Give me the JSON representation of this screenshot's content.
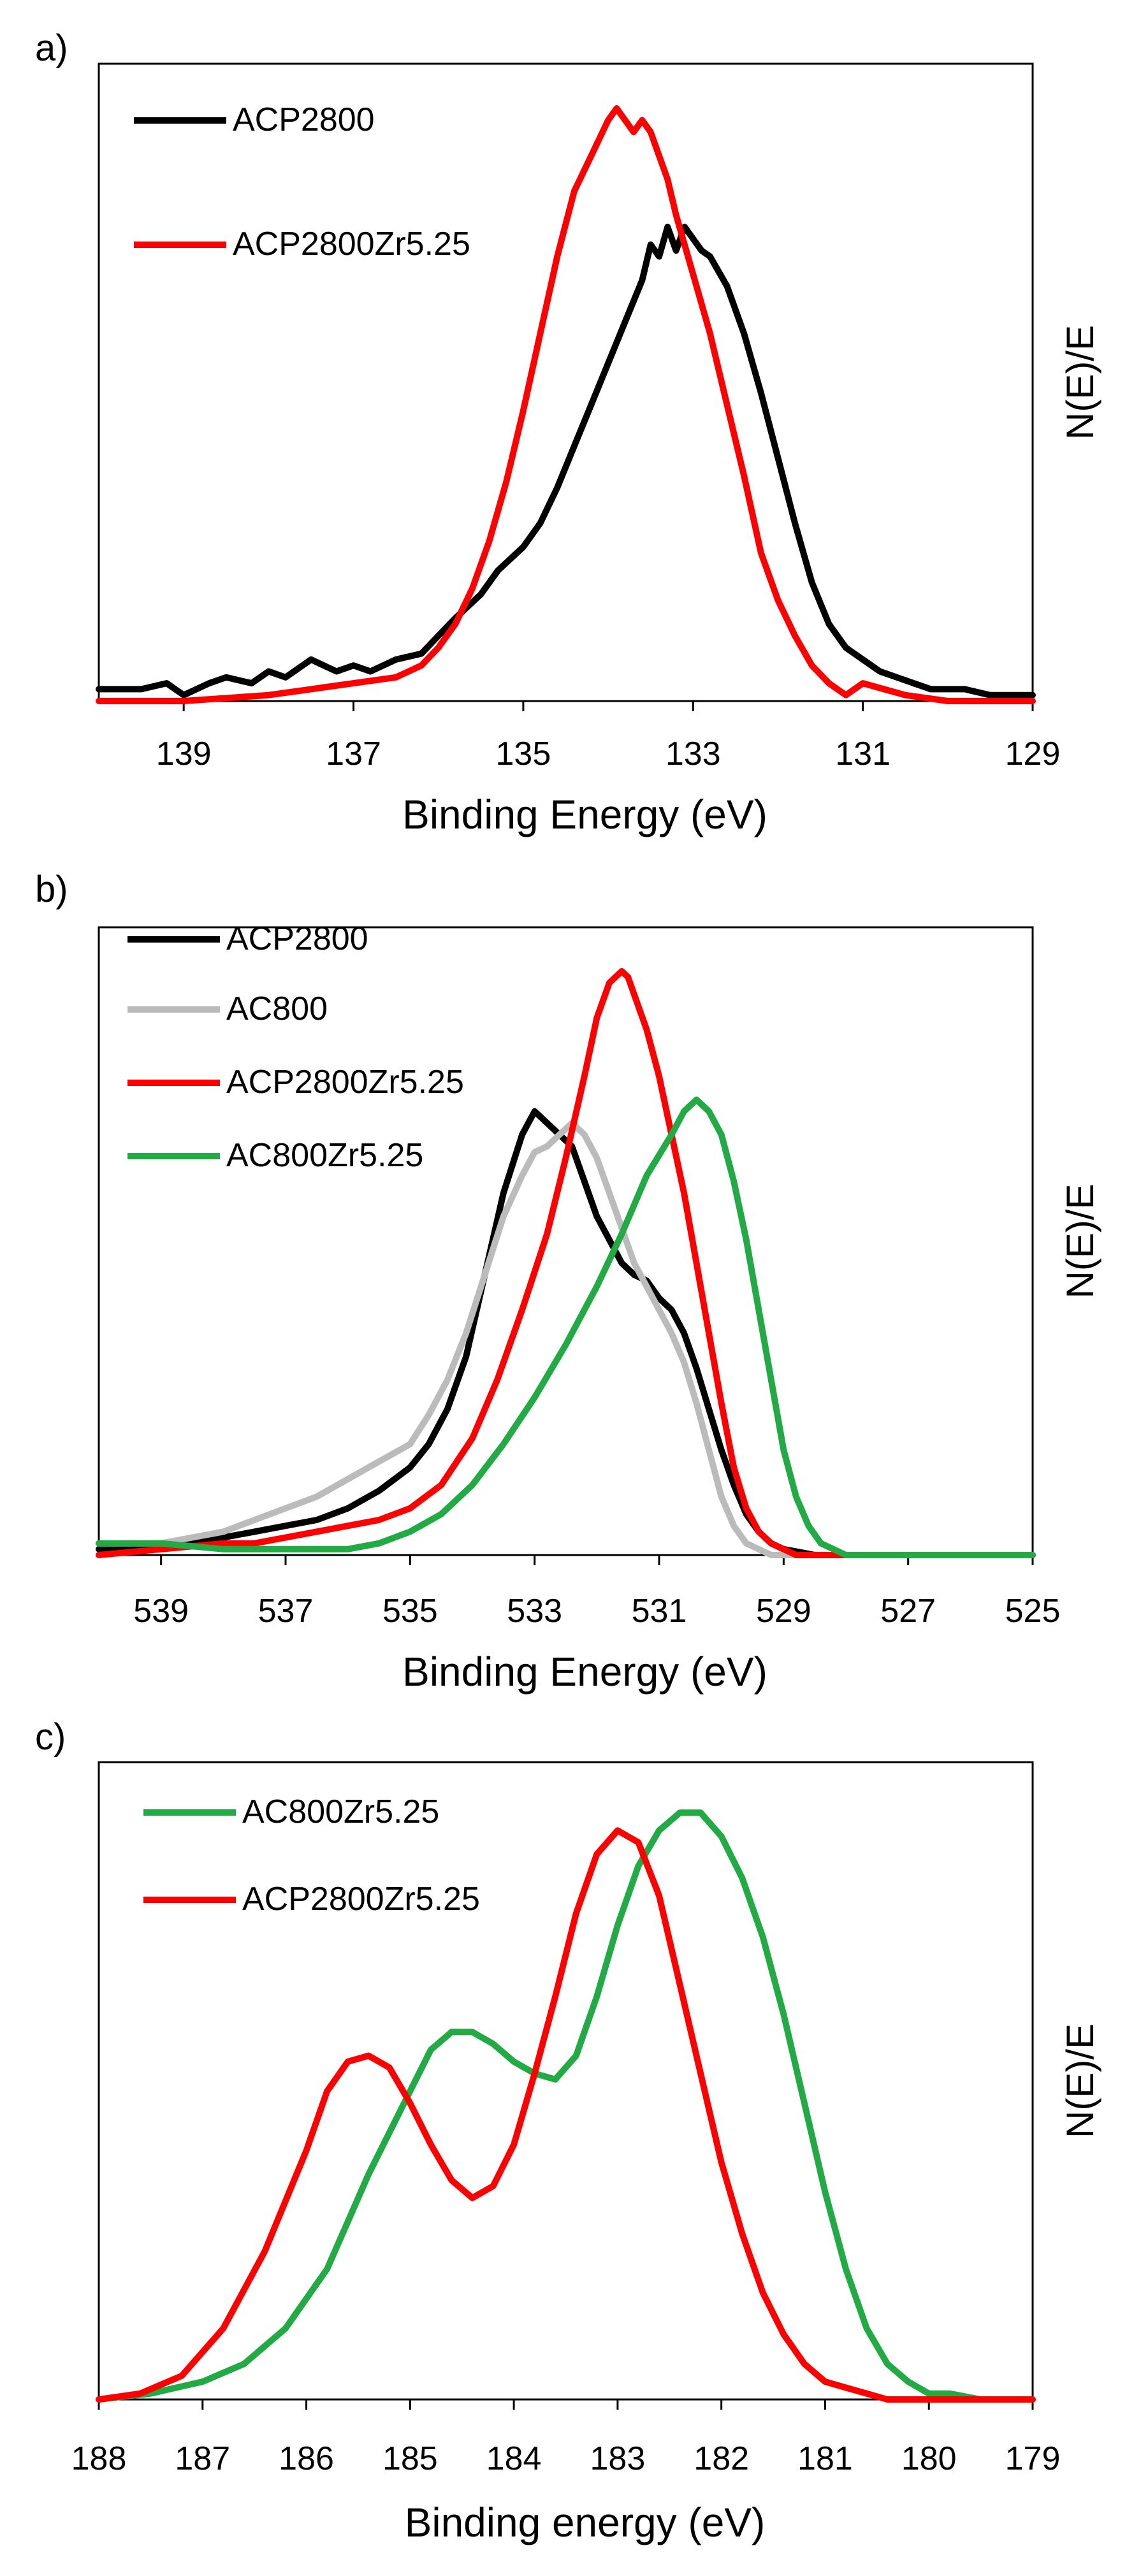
{
  "chart_data": [
    {
      "panel_label": "a)",
      "type": "line",
      "xlabel": "Binding Energy (eV)",
      "ylabel": "N(E)/E",
      "xlim": [
        140,
        129
      ],
      "ylim": [
        0,
        1.0
      ],
      "xticks": [
        139,
        137,
        135,
        133,
        131,
        129
      ],
      "legend_position": "top-left",
      "series": [
        {
          "name": "ACP2800",
          "color": "#000000",
          "x": [
            140.0,
            139.5,
            139.2,
            139.0,
            138.7,
            138.5,
            138.2,
            138.0,
            137.8,
            137.5,
            137.2,
            137.0,
            136.8,
            136.5,
            136.2,
            136.0,
            135.8,
            135.5,
            135.3,
            135.0,
            134.8,
            134.6,
            134.4,
            134.2,
            134.0,
            133.8,
            133.6,
            133.5,
            133.4,
            133.3,
            133.2,
            133.1,
            133.0,
            132.9,
            132.8,
            132.6,
            132.4,
            132.2,
            132.0,
            131.8,
            131.6,
            131.4,
            131.2,
            131.0,
            130.8,
            130.6,
            130.4,
            130.2,
            130.0,
            129.8,
            129.5,
            129.2,
            129.0
          ],
          "y": [
            0.02,
            0.02,
            0.03,
            0.01,
            0.03,
            0.04,
            0.03,
            0.05,
            0.04,
            0.07,
            0.05,
            0.06,
            0.05,
            0.07,
            0.08,
            0.11,
            0.14,
            0.18,
            0.22,
            0.26,
            0.3,
            0.36,
            0.43,
            0.5,
            0.57,
            0.64,
            0.71,
            0.77,
            0.75,
            0.8,
            0.76,
            0.8,
            0.78,
            0.76,
            0.75,
            0.7,
            0.62,
            0.52,
            0.41,
            0.3,
            0.2,
            0.13,
            0.09,
            0.07,
            0.05,
            0.04,
            0.03,
            0.02,
            0.02,
            0.02,
            0.01,
            0.01,
            0.01
          ]
        },
        {
          "name": "ACP2800Zr5.25",
          "color": "#ff0000",
          "x": [
            140.0,
            139.0,
            138.0,
            137.5,
            137.0,
            136.5,
            136.2,
            136.0,
            135.8,
            135.6,
            135.4,
            135.2,
            135.0,
            134.8,
            134.6,
            134.4,
            134.2,
            134.0,
            133.9,
            133.8,
            133.7,
            133.6,
            133.5,
            133.4,
            133.3,
            133.2,
            133.0,
            132.8,
            132.6,
            132.4,
            132.2,
            132.0,
            131.8,
            131.6,
            131.4,
            131.2,
            131.0,
            130.5,
            130.0,
            129.0
          ],
          "y": [
            0.0,
            0.0,
            0.01,
            0.02,
            0.03,
            0.04,
            0.06,
            0.09,
            0.13,
            0.19,
            0.27,
            0.37,
            0.49,
            0.62,
            0.75,
            0.86,
            0.92,
            0.98,
            1.0,
            0.98,
            0.96,
            0.98,
            0.96,
            0.92,
            0.88,
            0.82,
            0.72,
            0.62,
            0.5,
            0.38,
            0.25,
            0.17,
            0.11,
            0.06,
            0.03,
            0.01,
            0.03,
            0.01,
            0.0,
            0.0
          ]
        }
      ]
    },
    {
      "panel_label": "b)",
      "type": "line",
      "xlabel": "Binding Energy (eV)",
      "ylabel": "N(E)/E",
      "xlim": [
        540,
        525
      ],
      "ylim": [
        0,
        1.0
      ],
      "xticks": [
        539,
        537,
        535,
        533,
        531,
        529,
        527,
        525
      ],
      "legend_position": "top-left",
      "series": [
        {
          "name": "ACP2800",
          "color": "#000000",
          "x": [
            540.0,
            539.5,
            539.0,
            538.5,
            538.0,
            537.5,
            537.0,
            536.5,
            536.0,
            535.5,
            535.0,
            534.7,
            534.4,
            534.1,
            533.8,
            533.5,
            533.2,
            533.0,
            532.8,
            532.6,
            532.4,
            532.2,
            532.0,
            531.8,
            531.6,
            531.4,
            531.2,
            531.0,
            530.8,
            530.6,
            530.4,
            530.2,
            530.0,
            529.8,
            529.6,
            529.4,
            529.2,
            529.0,
            528.5,
            528.0,
            527.5,
            527.0,
            526.0,
            525.0
          ],
          "y": [
            0.01,
            0.01,
            0.02,
            0.02,
            0.03,
            0.04,
            0.05,
            0.06,
            0.08,
            0.11,
            0.15,
            0.19,
            0.25,
            0.34,
            0.48,
            0.62,
            0.72,
            0.76,
            0.74,
            0.72,
            0.7,
            0.64,
            0.58,
            0.54,
            0.5,
            0.48,
            0.47,
            0.44,
            0.42,
            0.38,
            0.32,
            0.25,
            0.18,
            0.12,
            0.07,
            0.04,
            0.02,
            0.01,
            0.0,
            0.0,
            0.0,
            0.0,
            0.0,
            0.0
          ]
        },
        {
          "name": "AC800",
          "color": "#bbbbbb",
          "x": [
            540.0,
            539.0,
            538.5,
            538.0,
            537.5,
            537.0,
            536.5,
            536.0,
            535.5,
            535.0,
            534.7,
            534.4,
            534.1,
            533.8,
            533.5,
            533.2,
            533.0,
            532.8,
            532.6,
            532.4,
            532.2,
            532.0,
            531.8,
            531.6,
            531.4,
            531.2,
            531.0,
            530.8,
            530.6,
            530.4,
            530.2,
            530.0,
            529.8,
            529.6,
            529.4,
            529.2,
            529.0,
            528.5,
            528.0,
            527.0,
            525.0
          ],
          "y": [
            0.02,
            0.02,
            0.03,
            0.04,
            0.06,
            0.08,
            0.1,
            0.13,
            0.16,
            0.19,
            0.24,
            0.3,
            0.38,
            0.48,
            0.58,
            0.65,
            0.69,
            0.7,
            0.72,
            0.74,
            0.72,
            0.68,
            0.62,
            0.56,
            0.5,
            0.46,
            0.42,
            0.38,
            0.33,
            0.26,
            0.18,
            0.1,
            0.05,
            0.02,
            0.01,
            0.0,
            0.0,
            0.0,
            0.0,
            0.0,
            0.0
          ]
        },
        {
          "name": "ACP2800Zr5.25",
          "color": "#ff0000",
          "x": [
            540.0,
            539.0,
            538.0,
            537.5,
            537.0,
            536.5,
            536.0,
            535.5,
            535.0,
            534.5,
            534.0,
            533.6,
            533.2,
            532.8,
            532.5,
            532.2,
            532.0,
            531.8,
            531.6,
            531.5,
            531.4,
            531.2,
            531.0,
            530.8,
            530.6,
            530.4,
            530.2,
            530.0,
            529.8,
            529.6,
            529.4,
            529.2,
            529.0,
            528.8,
            528.5,
            528.0,
            527.0,
            525.0
          ],
          "y": [
            0.0,
            0.01,
            0.02,
            0.02,
            0.03,
            0.04,
            0.05,
            0.06,
            0.08,
            0.12,
            0.2,
            0.3,
            0.42,
            0.55,
            0.68,
            0.82,
            0.92,
            0.98,
            1.0,
            0.99,
            0.96,
            0.9,
            0.82,
            0.72,
            0.62,
            0.5,
            0.38,
            0.26,
            0.15,
            0.08,
            0.04,
            0.02,
            0.01,
            0.0,
            0.0,
            0.0,
            0.0,
            0.0
          ]
        },
        {
          "name": "AC800Zr5.25",
          "color": "#22aa44",
          "x": [
            540.0,
            539.0,
            538.0,
            537.0,
            536.0,
            535.5,
            535.0,
            534.5,
            534.0,
            533.5,
            533.0,
            532.5,
            532.0,
            531.6,
            531.2,
            530.8,
            530.6,
            530.4,
            530.2,
            530.0,
            529.8,
            529.6,
            529.4,
            529.2,
            529.0,
            528.8,
            528.6,
            528.4,
            528.2,
            528.0,
            527.5,
            527.0,
            526.0,
            525.0
          ],
          "y": [
            0.02,
            0.02,
            0.01,
            0.01,
            0.01,
            0.02,
            0.04,
            0.07,
            0.12,
            0.19,
            0.27,
            0.36,
            0.46,
            0.55,
            0.65,
            0.72,
            0.76,
            0.78,
            0.76,
            0.72,
            0.64,
            0.54,
            0.42,
            0.3,
            0.18,
            0.1,
            0.05,
            0.02,
            0.01,
            0.0,
            0.0,
            0.0,
            0.0,
            0.0
          ]
        }
      ]
    },
    {
      "panel_label": "c)",
      "type": "line",
      "xlabel": "Binding energy (eV)",
      "ylabel": "N(E)/E",
      "xlim": [
        188,
        179
      ],
      "ylim": [
        0,
        1.0
      ],
      "xticks": [
        188,
        187,
        186,
        185,
        184,
        183,
        182,
        181,
        180,
        179
      ],
      "legend_position": "top-left",
      "series": [
        {
          "name": "AC800Zr5.25",
          "color": "#22aa44",
          "x": [
            188.0,
            187.5,
            187.0,
            186.6,
            186.2,
            185.8,
            185.4,
            185.0,
            184.8,
            184.6,
            184.4,
            184.2,
            184.0,
            183.8,
            183.6,
            183.4,
            183.2,
            183.0,
            182.8,
            182.6,
            182.4,
            182.2,
            182.0,
            181.8,
            181.6,
            181.4,
            181.2,
            181.0,
            180.8,
            180.6,
            180.4,
            180.2,
            180.0,
            179.8,
            179.5,
            179.0
          ],
          "y": [
            0.0,
            0.01,
            0.03,
            0.06,
            0.12,
            0.22,
            0.38,
            0.52,
            0.59,
            0.62,
            0.62,
            0.6,
            0.57,
            0.55,
            0.54,
            0.58,
            0.68,
            0.8,
            0.9,
            0.96,
            0.99,
            0.99,
            0.95,
            0.88,
            0.78,
            0.65,
            0.5,
            0.35,
            0.22,
            0.12,
            0.06,
            0.03,
            0.01,
            0.01,
            0.0,
            0.0
          ]
        },
        {
          "name": "ACP2800Zr5.25",
          "color": "#ff0000",
          "x": [
            188.0,
            187.6,
            187.2,
            186.8,
            186.4,
            186.0,
            185.8,
            185.6,
            185.4,
            185.2,
            185.0,
            184.8,
            184.6,
            184.4,
            184.2,
            184.0,
            183.8,
            183.6,
            183.4,
            183.2,
            183.0,
            182.8,
            182.6,
            182.4,
            182.2,
            182.0,
            181.8,
            181.6,
            181.4,
            181.2,
            181.0,
            180.8,
            180.6,
            180.4,
            180.0,
            179.5,
            179.0
          ],
          "y": [
            0.0,
            0.01,
            0.04,
            0.12,
            0.25,
            0.42,
            0.52,
            0.57,
            0.58,
            0.56,
            0.5,
            0.43,
            0.37,
            0.34,
            0.36,
            0.43,
            0.55,
            0.68,
            0.82,
            0.92,
            0.96,
            0.94,
            0.85,
            0.7,
            0.55,
            0.4,
            0.28,
            0.18,
            0.11,
            0.06,
            0.03,
            0.02,
            0.01,
            0.0,
            0.0,
            0.0,
            0.0
          ]
        }
      ]
    }
  ]
}
